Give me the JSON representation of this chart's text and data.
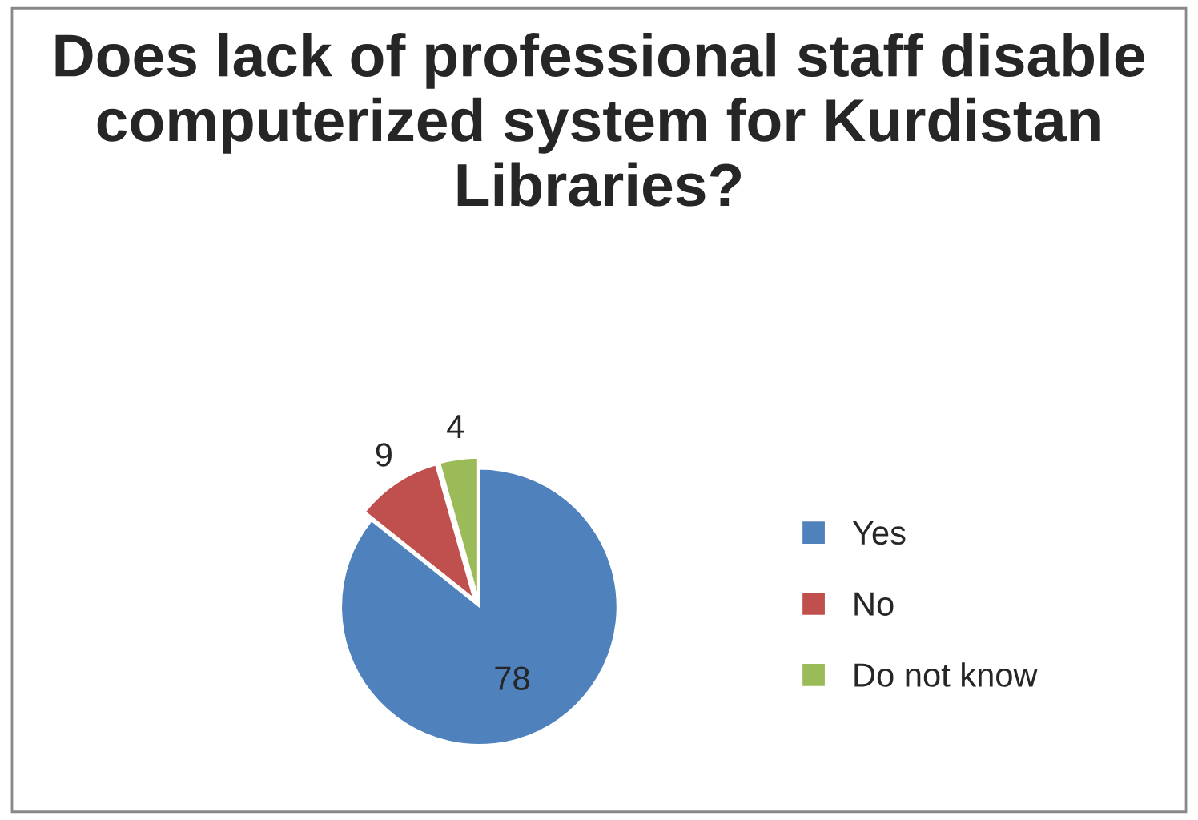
{
  "chart_data": {
    "type": "pie",
    "title": "Does lack of professional staff disable computerized system for Kurdistan Libraries?",
    "categories": [
      "Yes",
      "No",
      "Do not know"
    ],
    "values": [
      78,
      9,
      4
    ],
    "colors": [
      "#4f81bd",
      "#c0504d",
      "#9bbb59"
    ],
    "data_labels": true,
    "legend": "right"
  }
}
